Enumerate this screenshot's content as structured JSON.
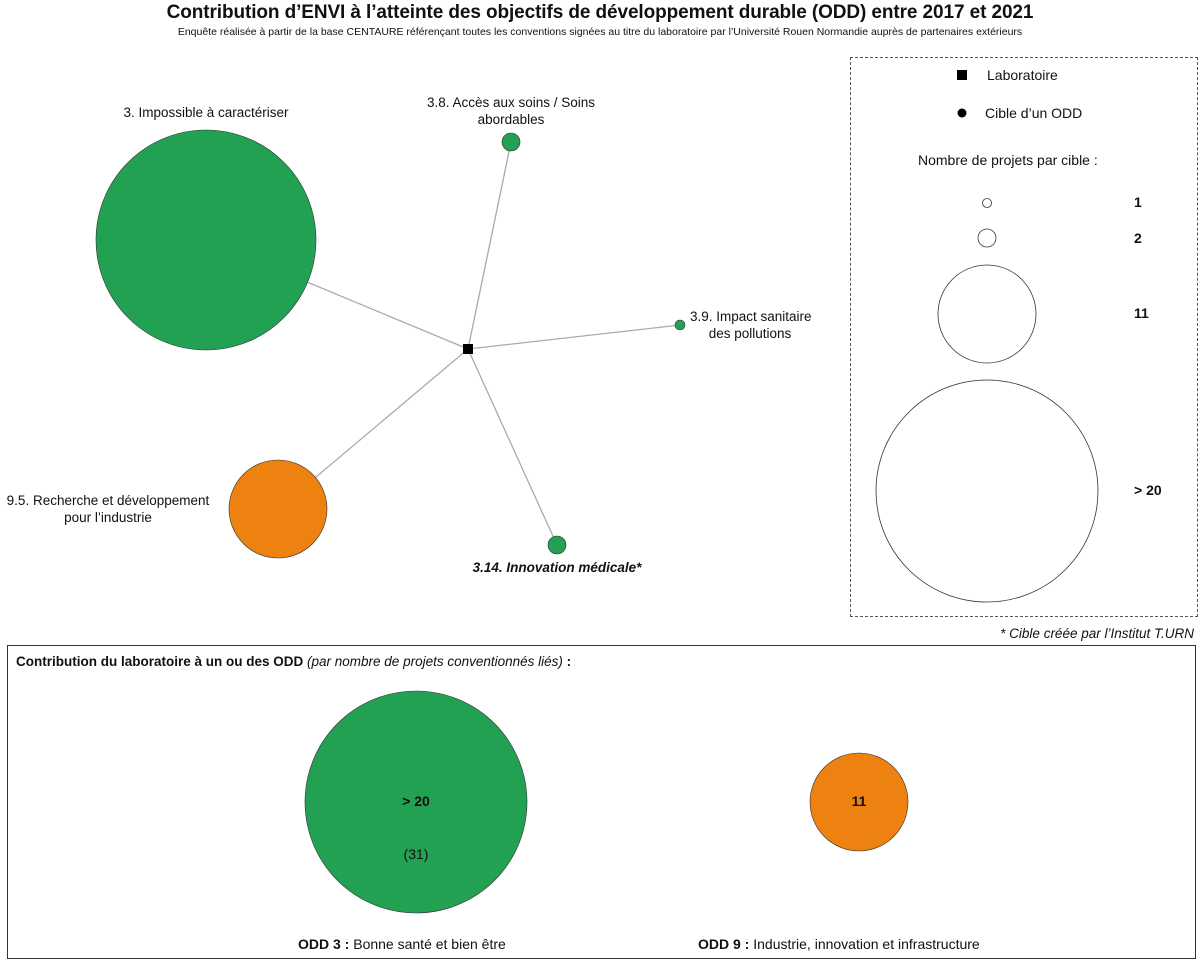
{
  "title": "Contribution d’ENVI à l’atteinte des objectifs de développement durable (ODD) entre 2017 et 2021",
  "subtitle": "Enquête réalisée à partir de la base CENTAURE référençant toutes les conventions signées au titre du laboratoire par l’Université Rouen Normandie auprès de partenaires extérieurs",
  "colors": {
    "odd3": "#23a153",
    "odd9": "#ee8211",
    "link": "#aaaaaa",
    "lab": "#000000"
  },
  "network": {
    "nodes": [
      {
        "id": "impossible",
        "label_lines": [
          "3. Impossible à caractériser"
        ],
        "size_category": "> 20",
        "odd": "odd3"
      },
      {
        "id": "acces",
        "label_lines": [
          "3.8. Accès aux soins / Soins",
          "abordables"
        ],
        "size_category": "1",
        "odd": "odd3"
      },
      {
        "id": "impact",
        "label_lines": [
          "3.9. Impact sanitaire",
          "des pollutions"
        ],
        "size_category": "< 1",
        "odd": "odd3"
      },
      {
        "id": "recherche",
        "label_lines": [
          "9.5. Recherche et développement",
          "pour l’industrie"
        ],
        "size_category": "11",
        "odd": "odd9"
      },
      {
        "id": "innovation",
        "label_lines": [
          "3.14. Innovation médicale*"
        ],
        "size_category": "1",
        "odd": "odd3"
      }
    ]
  },
  "legend": {
    "laboratoire": "Laboratoire",
    "cible": "Cible d’un ODD",
    "heading": "Nombre de projets par cible :",
    "sizes": [
      "1",
      "2",
      "11",
      "> 20"
    ]
  },
  "footnote": "* Cible créée par l’Institut T.URN",
  "bottom": {
    "heading_bold": "Contribution du laboratoire à un ou des ODD",
    "heading_italic": "(par nombre de projets conventionnés liés)",
    "heading_tail": " :",
    "odd3": {
      "value_label": "> 20",
      "exact": "(31)",
      "caption_bold": "ODD 3 :",
      "caption_rest": " Bonne santé et bien être"
    },
    "odd9": {
      "value_label": "11",
      "caption_bold": "ODD 9 :",
      "caption_rest": " Industrie, innovation et infrastructure"
    }
  }
}
